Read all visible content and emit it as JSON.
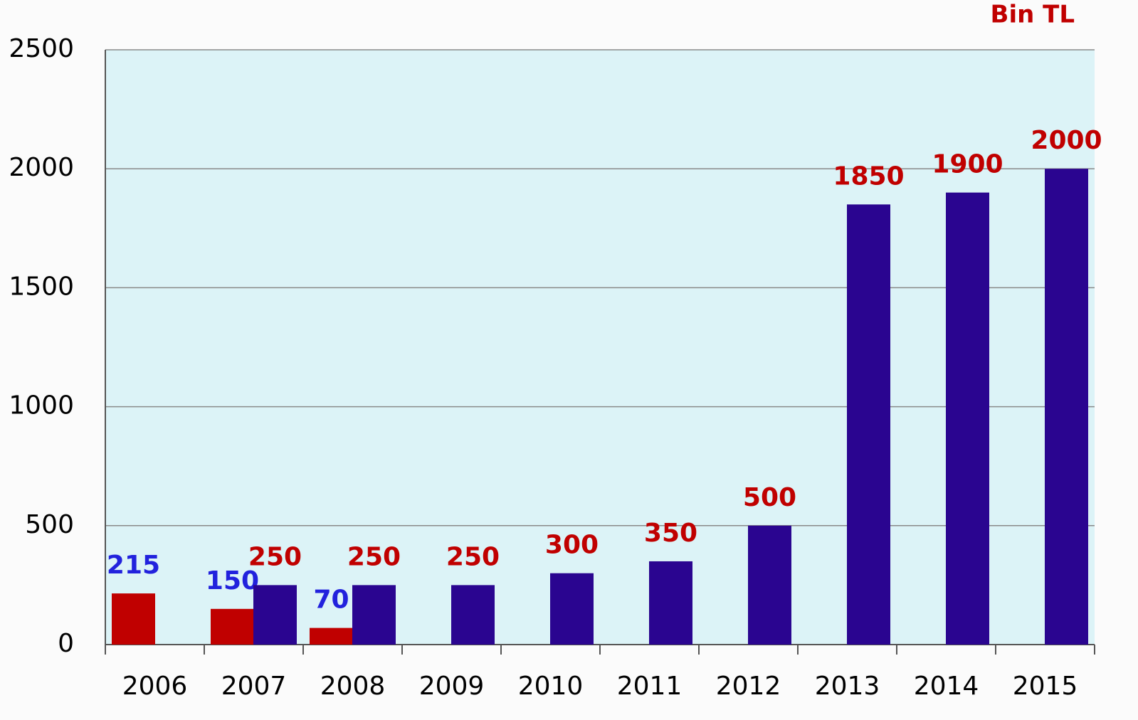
{
  "chart_data": {
    "type": "bar",
    "annotation": "Bin TL",
    "categories": [
      "2006",
      "2007",
      "2008",
      "2009",
      "2010",
      "2011",
      "2012",
      "2013",
      "2014",
      "2015"
    ],
    "series": [
      {
        "color": "#c00000",
        "label_color": "#2222dd",
        "values": [
          215,
          150,
          70,
          null,
          null,
          null,
          null,
          null,
          null,
          null
        ]
      },
      {
        "color": "#2a0590",
        "label_color": "#c00000",
        "values": [
          null,
          250,
          250,
          250,
          300,
          350,
          500,
          1850,
          1900,
          2000
        ]
      }
    ],
    "ylim": [
      0,
      2500
    ],
    "yticks": [
      0,
      500,
      1000,
      1500,
      2000,
      2500
    ],
    "grid": true,
    "plot_background": "#dcf3f7"
  }
}
